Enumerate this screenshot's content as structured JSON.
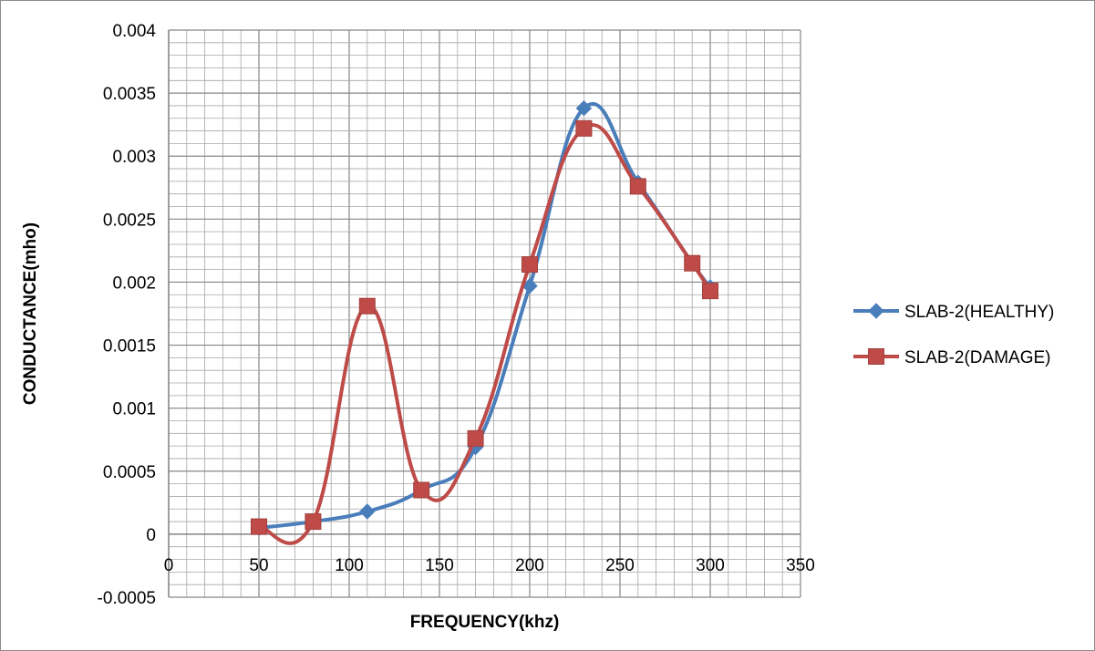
{
  "chart_data": {
    "type": "line",
    "xlabel": "FREQUENCY(khz)",
    "ylabel": "CONDUCTANCE(mho)",
    "xlim": [
      0,
      350
    ],
    "ylim": [
      -0.0005,
      0.004
    ],
    "x_ticks": [
      "0",
      "50",
      "100",
      "150",
      "200",
      "250",
      "300",
      "350"
    ],
    "y_ticks": [
      "-0.0005",
      "0",
      "0.0005",
      "0.001",
      "0.0015",
      "0.002",
      "0.0025",
      "0.003",
      "0.0035",
      "0.004"
    ],
    "grid": true,
    "legend_position": "right",
    "smooth": true,
    "series": [
      {
        "name": "SLAB-2(HEALTHY)",
        "color": "#4a7ebb",
        "marker": "diamond",
        "x": [
          50,
          80,
          110,
          140,
          170,
          200,
          230,
          260,
          290,
          300
        ],
        "y": [
          5e-05,
          0.0001,
          0.00018,
          0.00035,
          0.00069,
          0.00197,
          0.00338,
          0.00279,
          0.00215,
          0.00196
        ]
      },
      {
        "name": "SLAB-2(DAMAGE)",
        "color": "#be4b48",
        "marker": "square",
        "x": [
          50,
          80,
          110,
          140,
          170,
          200,
          230,
          260,
          290,
          300
        ],
        "y": [
          6e-05,
          0.0001,
          0.00181,
          0.00035,
          0.00076,
          0.00214,
          0.00322,
          0.00276,
          0.00215,
          0.00193
        ]
      }
    ]
  }
}
